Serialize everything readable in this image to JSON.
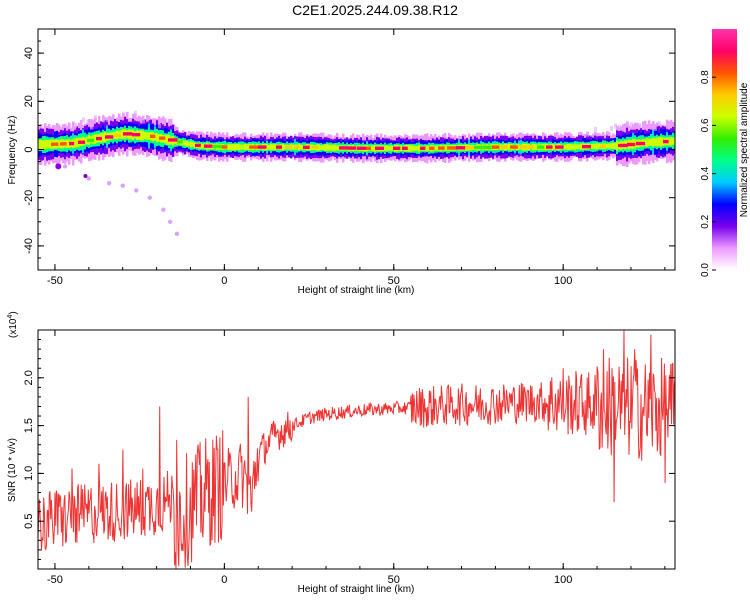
{
  "title": "C2E1.2025.244.09.38.R12",
  "chart_data": [
    {
      "type": "heatmap",
      "title": "C2E1.2025.244.09.38.R12",
      "xlabel": "Height of straight line (km)",
      "ylabel": "Frequency (Hz)",
      "xlim": [
        -55,
        133
      ],
      "ylim": [
        -50,
        50
      ],
      "xticks": [
        -50,
        0,
        50,
        100
      ],
      "yticks": [
        -40,
        -20,
        0,
        20,
        40
      ],
      "band_center_hz": [
        [
          -55,
          2
        ],
        [
          -45,
          2.5
        ],
        [
          -38,
          4.5
        ],
        [
          -30,
          6.5
        ],
        [
          -22,
          5.5
        ],
        [
          -15,
          3.5
        ],
        [
          -8,
          1.5
        ],
        [
          0,
          1
        ],
        [
          10,
          1
        ],
        [
          20,
          1
        ],
        [
          40,
          0.5
        ],
        [
          60,
          0.5
        ],
        [
          80,
          1
        ],
        [
          100,
          1
        ],
        [
          115,
          1.5
        ],
        [
          125,
          3
        ],
        [
          133,
          3.5
        ]
      ],
      "faint_tail_points": [
        [
          -47,
          -7
        ],
        [
          -40,
          -12
        ],
        [
          -34,
          -14
        ],
        [
          -30,
          -15
        ],
        [
          -26,
          -17
        ],
        [
          -22,
          -20
        ],
        [
          -18,
          -25
        ],
        [
          -16,
          -30
        ],
        [
          -14,
          -35
        ]
      ],
      "colorbar": {
        "label": "Normalized spectral amplitude",
        "range": [
          0,
          1
        ],
        "ticks": [
          0.0,
          0.2,
          0.4,
          0.6,
          0.8
        ],
        "tick_labels": [
          "0.0",
          "0.2",
          "0.4",
          "0.6",
          "0.8"
        ],
        "colors": [
          "#ffffff",
          "#ee99ff",
          "#7700ee",
          "#0000ff",
          "#00ccff",
          "#00ff88",
          "#33ee00",
          "#ccff00",
          "#ffcc00",
          "#ff5500",
          "#ff0066",
          "#ff33aa"
        ]
      }
    },
    {
      "type": "line",
      "xlabel": "Height of straight line (km)",
      "ylabel": "SNR (10 * v/v)",
      "yscale_label": "(x10",
      "yscale_exp": "4",
      "yscale_close": ")",
      "xlim": [
        -55,
        133
      ],
      "ylim": [
        0,
        2.5
      ],
      "xticks": [
        -50,
        0,
        50,
        100
      ],
      "yticks": [
        0.5,
        1.0,
        1.5,
        2.0
      ],
      "ytick_labels": [
        "0.5",
        "1.0",
        "1.5",
        "2.0"
      ],
      "color": "#ee3333",
      "trend": [
        [
          -55,
          0.25
        ],
        [
          -40,
          0.35
        ],
        [
          -25,
          0.4
        ],
        [
          -15,
          0.5
        ],
        [
          -5,
          0.8
        ],
        [
          0,
          0.9
        ],
        [
          5,
          1.0
        ],
        [
          8,
          0.8
        ],
        [
          10,
          1.2
        ],
        [
          15,
          1.4
        ],
        [
          20,
          1.5
        ],
        [
          25,
          1.58
        ],
        [
          30,
          1.62
        ],
        [
          40,
          1.66
        ],
        [
          50,
          1.68
        ],
        [
          60,
          1.7
        ],
        [
          70,
          1.72
        ],
        [
          80,
          1.73
        ],
        [
          90,
          1.75
        ],
        [
          100,
          1.74
        ],
        [
          110,
          1.72
        ],
        [
          120,
          1.68
        ],
        [
          133,
          1.65
        ]
      ],
      "spikes": [
        [
          -50,
          0.8
        ],
        [
          -45,
          1.05
        ],
        [
          -37,
          1.1
        ],
        [
          -30,
          1.25
        ],
        [
          -24,
          1.05
        ],
        [
          -19,
          1.7
        ],
        [
          -14,
          1.35
        ],
        [
          -8,
          1.2
        ],
        [
          7,
          1.8
        ],
        [
          8,
          0.6
        ],
        [
          60,
          1.5
        ],
        [
          100,
          2.1
        ],
        [
          105,
          1.9
        ],
        [
          112,
          2.3
        ],
        [
          115,
          0.7
        ],
        [
          118,
          2.5
        ],
        [
          121,
          2.3
        ],
        [
          126,
          2.45
        ],
        [
          130,
          0.9
        ]
      ]
    }
  ],
  "labels": {
    "top_xlabel": "Height of straight line (km)",
    "top_ylabel": "Frequency (Hz)",
    "bottom_xlabel": "Height of straight line (km)",
    "bottom_ylabel": "SNR (10 * v/v)",
    "colorbar_label": "Normalized spectral amplitude"
  }
}
